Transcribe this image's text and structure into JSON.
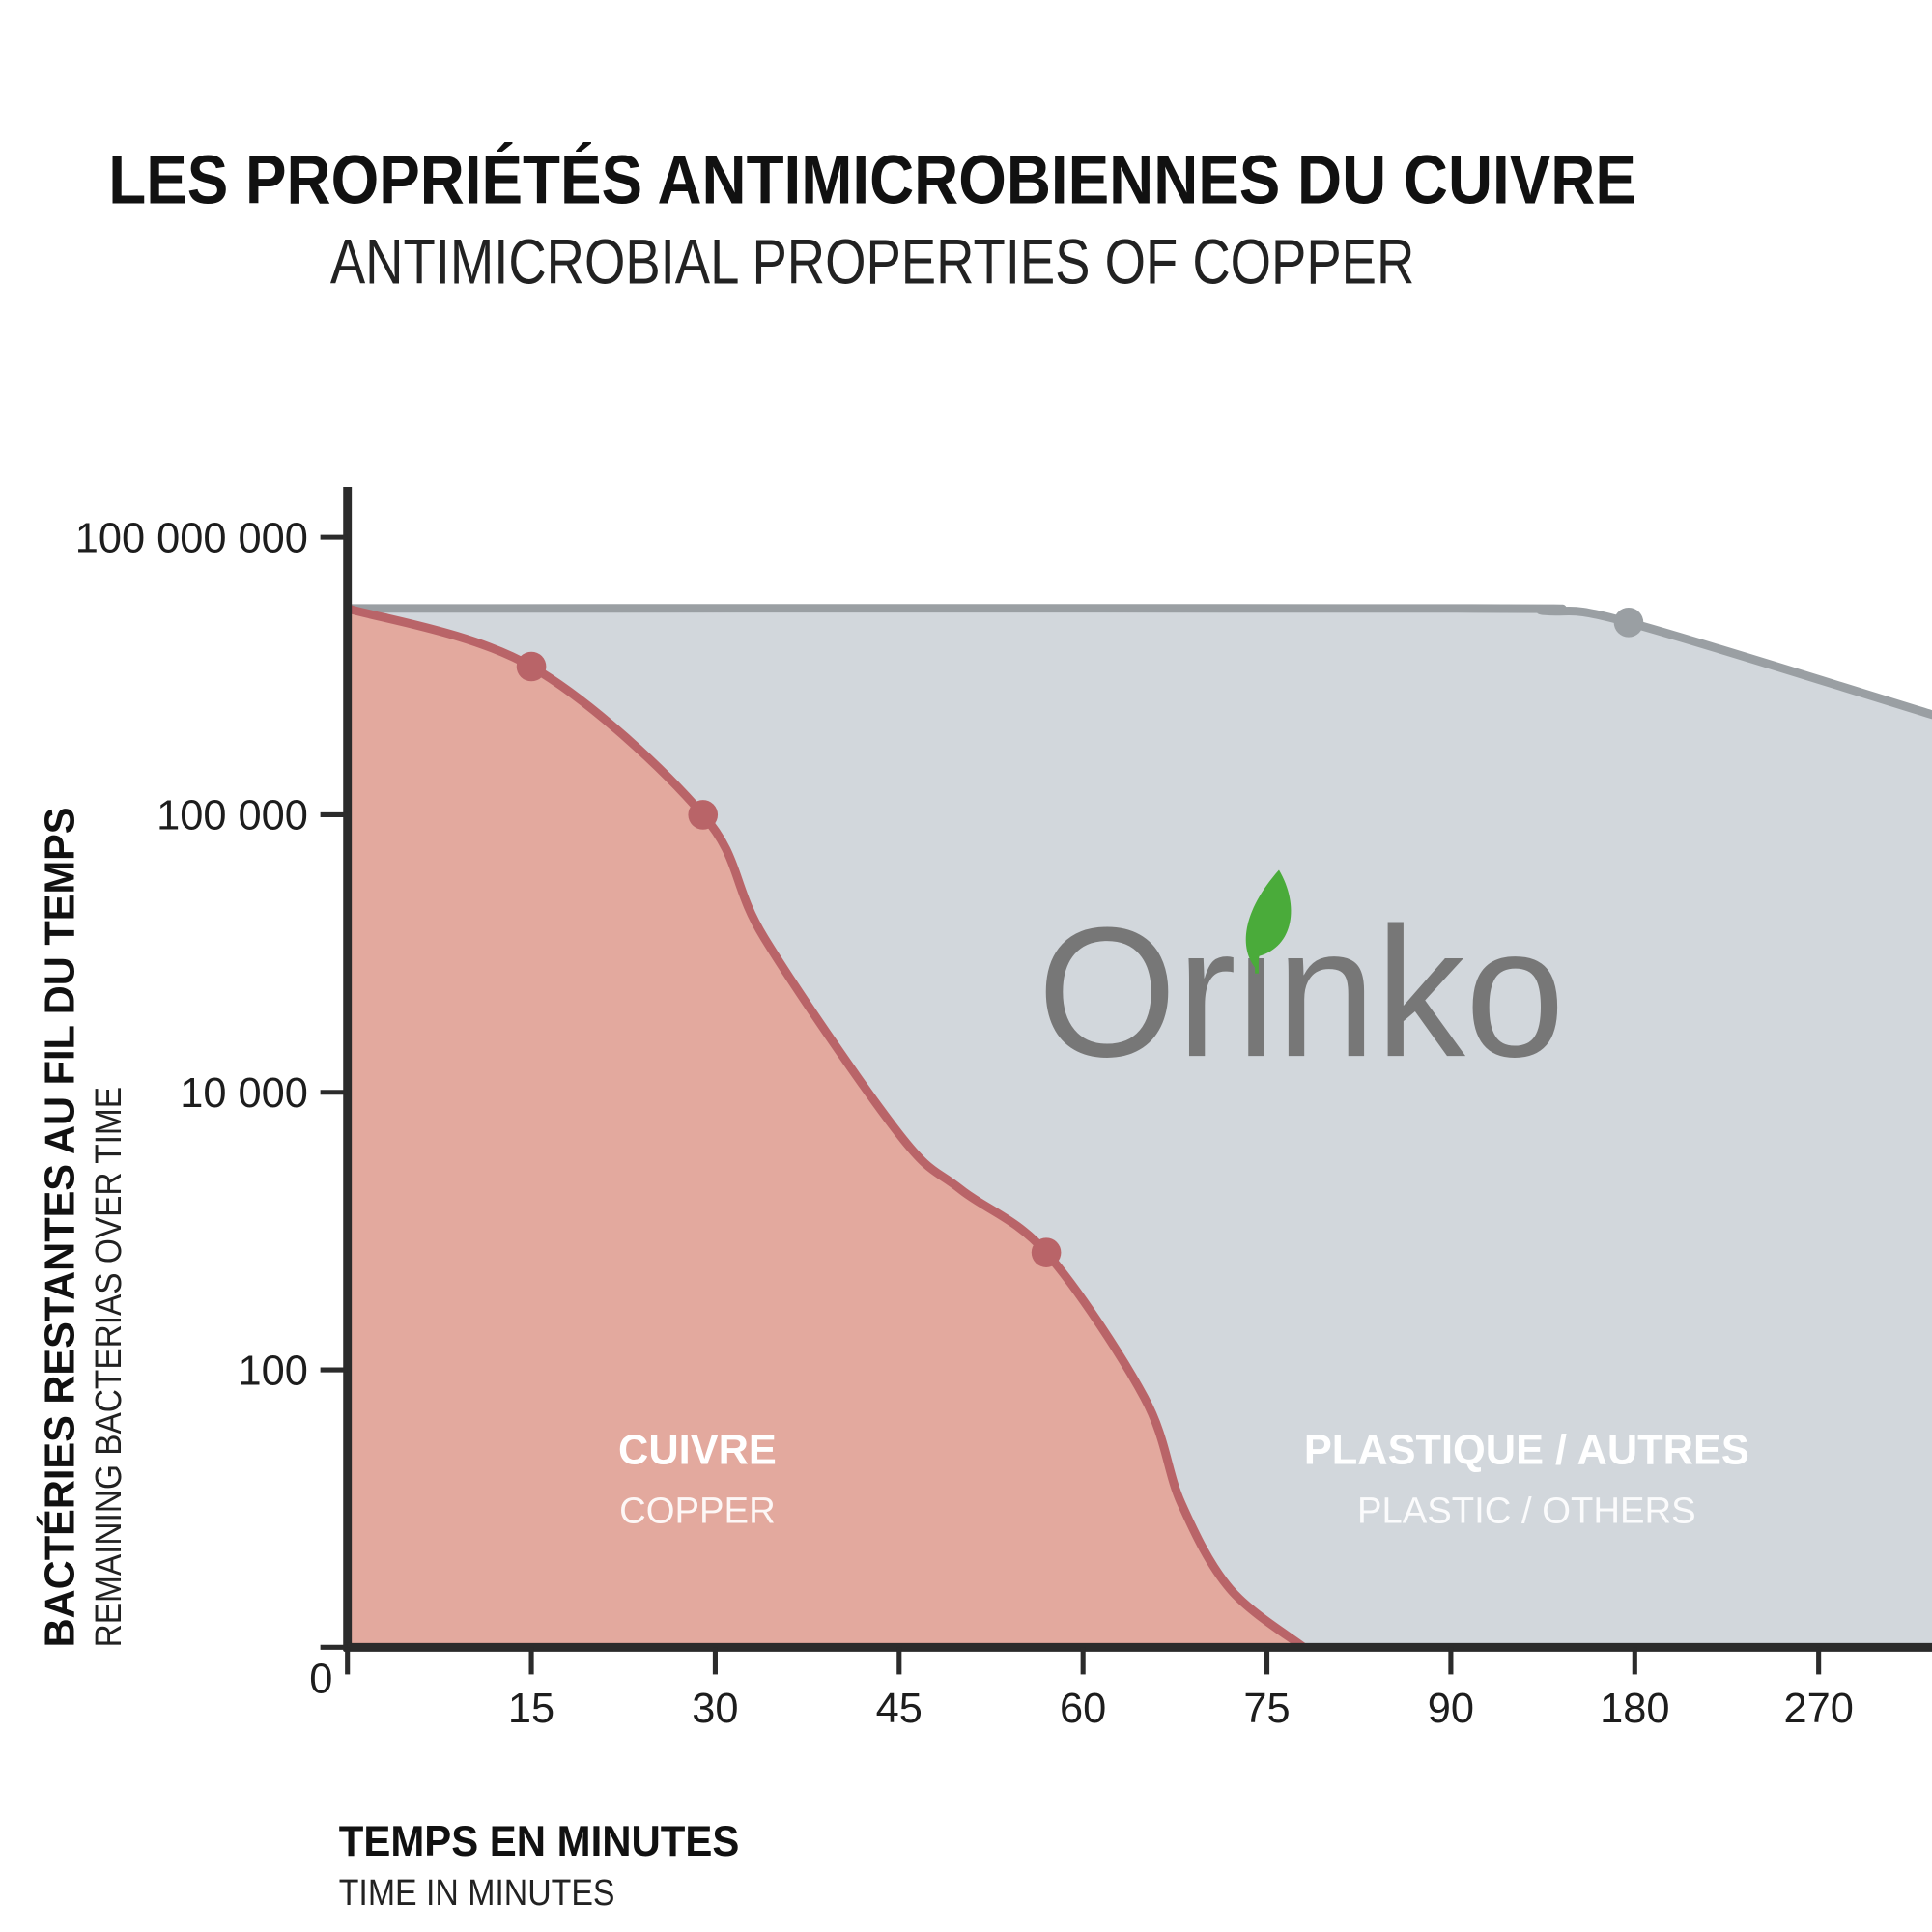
{
  "chart_data": {
    "type": "area",
    "title": "LES PROPRIÉTÉS ANTIMICROBIENNES DU CUIVRE",
    "subtitle": "ANTIMICROBIAL PROPERTIES OF COPPER",
    "y_label": "BACTÉRIES RESTANTES AU FIL DU TEMPS",
    "y_label_sub": "REMAINING BACTERIAS OVER TIME",
    "x_label": "TEMPS EN MINUTES",
    "x_label_sub": "TIME IN MINUTES",
    "logo": "Orinko",
    "xlim": [
      0,
      326
    ],
    "xticks": [
      0,
      15,
      30,
      45,
      60,
      75,
      90,
      180,
      270
    ],
    "ylim": [
      0,
      350000000
    ],
    "yticks": [
      100,
      {
        "value": 10000,
        "label": "10 000"
      },
      {
        "value": 100000,
        "label": "100 000"
      },
      {
        "value": 100000000,
        "label": "100 000 000"
      }
    ],
    "series": [
      {
        "name": "PLASTIQUE / AUTRES",
        "name_sub": "PLASTIC / OTHERS",
        "color": "#9a9fa3",
        "fill": "#d2d7dc",
        "x": [
          0,
          90,
          136,
          177,
          326
        ],
        "values": [
          17000000,
          17000000,
          16000000,
          12000000,
          1200000
        ],
        "markers": [
          3
        ]
      },
      {
        "name": "CUIVRE",
        "name_sub": "COPPER",
        "color": "#b96468",
        "fill": "#e3a99e",
        "x": [
          0,
          15,
          29,
          34,
          45,
          50,
          57,
          65,
          68,
          72,
          78
        ],
        "values": [
          17000000,
          4000000,
          100000,
          36000,
          5000,
          2000,
          700,
          90,
          52,
          21,
          0
        ],
        "markers": [
          1,
          2,
          6
        ]
      }
    ]
  }
}
